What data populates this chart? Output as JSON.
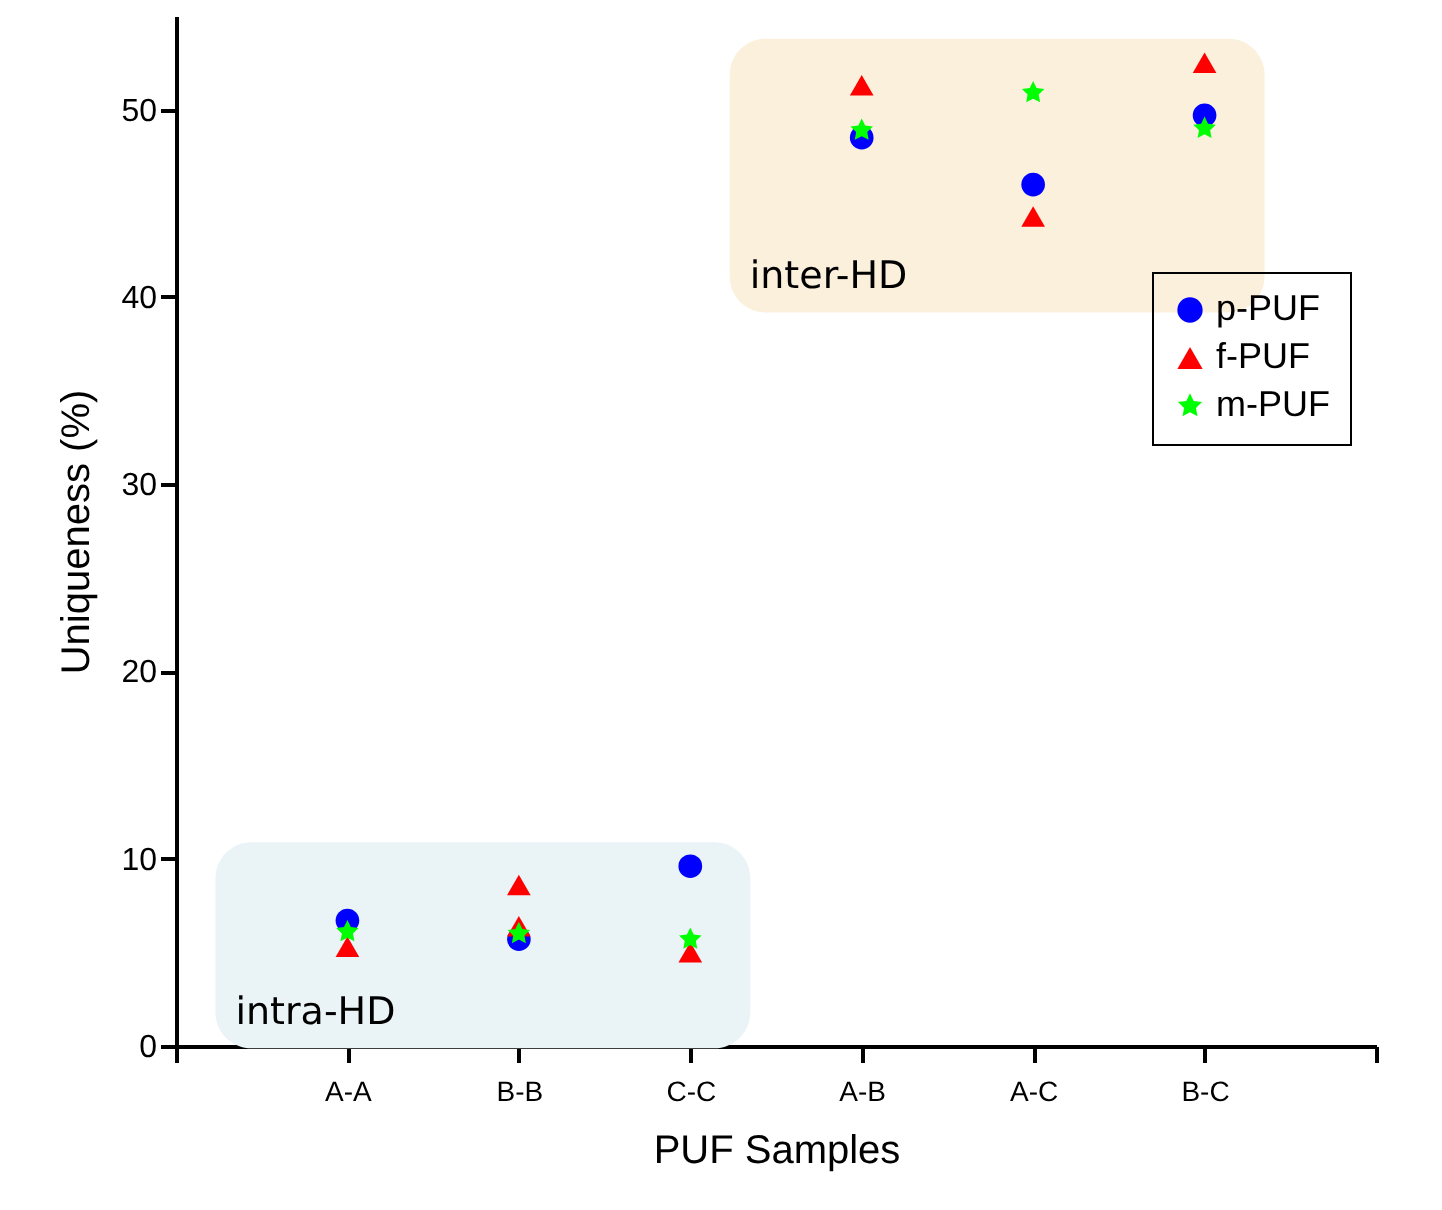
{
  "chart_data": {
    "type": "scatter",
    "xlabel": "PUF Samples",
    "ylabel": "Uniqueness (%)",
    "categories": [
      "A-A",
      "B-B",
      "C-C",
      "A-B",
      "A-C",
      "B-C"
    ],
    "ylim": [
      0,
      55
    ],
    "yticks": [
      0,
      10,
      20,
      30,
      40,
      50
    ],
    "grid": false,
    "legend": "top right",
    "series": [
      {
        "name": "p-PUF",
        "color": "#0000ff",
        "marker": "circle",
        "values": [
          6.7,
          5.7,
          9.6,
          48.5,
          46.0,
          49.7
        ]
      },
      {
        "name": "f-PUF",
        "color": "#ff0000",
        "marker": "triangle",
        "x": [
          "A-A",
          "B-B",
          "B-B",
          "C-C",
          "A-B",
          "A-C",
          "B-C"
        ],
        "values": [
          5.3,
          6.4,
          8.6,
          5.0,
          51.3,
          44.3,
          52.5
        ]
      },
      {
        "name": "m-PUF",
        "color": "#00ff00",
        "marker": "star",
        "values": [
          6.1,
          6.0,
          5.7,
          48.9,
          50.9,
          49.0
        ]
      }
    ],
    "annotations": [
      "intra-HD",
      "inter-HD"
    ]
  }
}
